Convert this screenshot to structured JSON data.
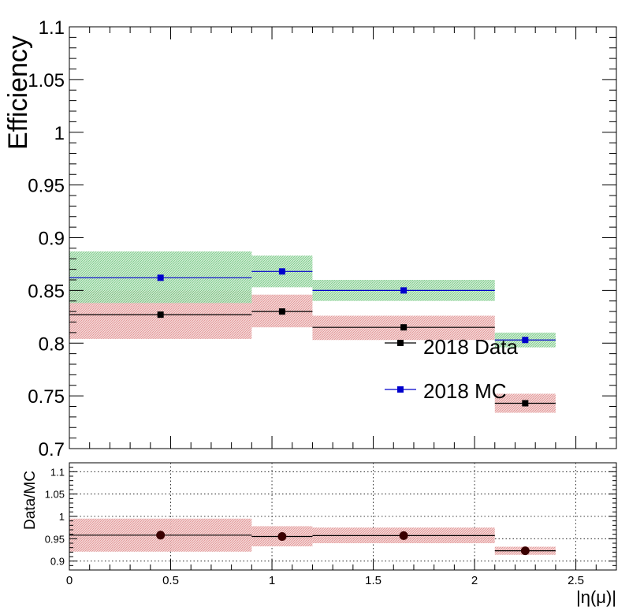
{
  "chart_data": [
    {
      "type": "scatter",
      "title": "",
      "ylabel": "Efficiency",
      "xlabel": "",
      "xlim": [
        0,
        2.7
      ],
      "ylim": [
        0.7,
        1.1
      ],
      "y_ticks": [
        0.7,
        0.75,
        0.8,
        0.85,
        0.9,
        0.95,
        1,
        1.05,
        1.1
      ],
      "y_tick_labels": [
        "0.7",
        "0.75",
        "0.8",
        "0.85",
        "0.9",
        "0.95",
        "1",
        "1.05",
        "1.1"
      ],
      "grid": false,
      "legend_position": "lower-right",
      "series": [
        {
          "name": "2018 Data",
          "color": "#000000",
          "band_color": "#e8a0a0",
          "marker": "square",
          "points": [
            {
              "xlo": 0.0,
              "xhi": 0.9,
              "x": 0.45,
              "y": 0.827,
              "ylo": 0.804,
              "yhi": 0.85
            },
            {
              "xlo": 0.9,
              "xhi": 1.2,
              "x": 1.05,
              "y": 0.83,
              "ylo": 0.815,
              "yhi": 0.846
            },
            {
              "xlo": 1.2,
              "xhi": 2.1,
              "x": 1.65,
              "y": 0.815,
              "ylo": 0.803,
              "yhi": 0.826
            },
            {
              "xlo": 2.1,
              "xhi": 2.4,
              "x": 2.25,
              "y": 0.743,
              "ylo": 0.734,
              "yhi": 0.752
            }
          ]
        },
        {
          "name": "2018 MC",
          "color": "#0000cc",
          "band_color": "#8fd19a",
          "marker": "square",
          "points": [
            {
              "xlo": 0.0,
              "xhi": 0.9,
              "x": 0.45,
              "y": 0.862,
              "ylo": 0.838,
              "yhi": 0.887
            },
            {
              "xlo": 0.9,
              "xhi": 1.2,
              "x": 1.05,
              "y": 0.868,
              "ylo": 0.853,
              "yhi": 0.883
            },
            {
              "xlo": 1.2,
              "xhi": 2.1,
              "x": 1.65,
              "y": 0.85,
              "ylo": 0.84,
              "yhi": 0.86
            },
            {
              "xlo": 2.1,
              "xhi": 2.4,
              "x": 2.25,
              "y": 0.803,
              "ylo": 0.796,
              "yhi": 0.81
            }
          ]
        }
      ]
    },
    {
      "type": "scatter",
      "title": "",
      "ylabel": "Data/MC",
      "xlabel": "|η(μ)|",
      "xlim": [
        0,
        2.7
      ],
      "ylim": [
        0.88,
        1.12
      ],
      "x_ticks": [
        0,
        0.5,
        1,
        1.5,
        2,
        2.5
      ],
      "x_tick_labels": [
        "0",
        "0.5",
        "1",
        "1.5",
        "2",
        "2.5"
      ],
      "y_ticks": [
        0.9,
        0.95,
        1,
        1.05,
        1.1
      ],
      "y_tick_labels": [
        "0.9",
        "0.95",
        "1",
        "1.05",
        "1.1"
      ],
      "grid": true,
      "series": [
        {
          "color": "#000000",
          "point_color": "#3a0000",
          "band_color": "#e8a0a0",
          "marker": "circle",
          "points": [
            {
              "xlo": 0.0,
              "xhi": 0.9,
              "x": 0.45,
              "y": 0.958,
              "ylo": 0.921,
              "yhi": 0.995
            },
            {
              "xlo": 0.9,
              "xhi": 1.2,
              "x": 1.05,
              "y": 0.955,
              "ylo": 0.933,
              "yhi": 0.978
            },
            {
              "xlo": 1.2,
              "xhi": 2.1,
              "x": 1.65,
              "y": 0.957,
              "ylo": 0.94,
              "yhi": 0.975
            },
            {
              "xlo": 2.1,
              "xhi": 2.4,
              "x": 2.25,
              "y": 0.923,
              "ylo": 0.914,
              "yhi": 0.932
            }
          ]
        }
      ]
    }
  ]
}
